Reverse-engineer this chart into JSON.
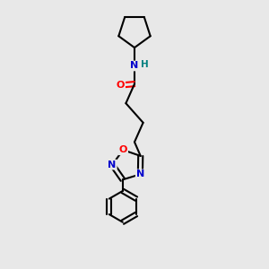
{
  "background_color": "#e8e8e8",
  "bond_color": "#000000",
  "atom_colors": {
    "N": "#0000cc",
    "O": "#ff0000",
    "H": "#008080",
    "C": "#000000"
  },
  "figsize": [
    3.0,
    3.0
  ],
  "dpi": 100
}
